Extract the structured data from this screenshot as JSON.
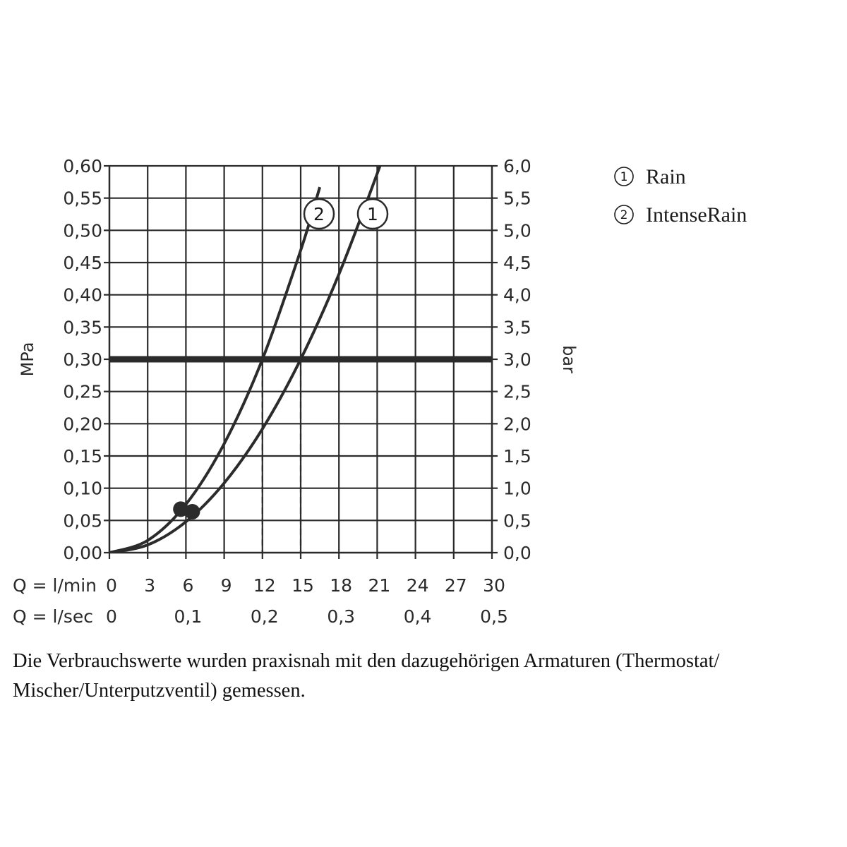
{
  "chart_data": {
    "type": "line",
    "xlabel_primary": "Q = l/min",
    "xlabel_secondary": "Q = l/sec",
    "ylabel_left": "MPa",
    "ylabel_right": "bar",
    "xlim": [
      0,
      30
    ],
    "ylim": [
      0,
      0.6
    ],
    "grid": true,
    "x_ticks": [
      "0",
      "3",
      "6",
      "9",
      "12",
      "15",
      "18",
      "21",
      "24",
      "27",
      "30"
    ],
    "x2_ticks": [
      {
        "value": 0,
        "label": "0"
      },
      {
        "value": 6,
        "label": "0,1"
      },
      {
        "value": 12,
        "label": "0,2"
      },
      {
        "value": 18,
        "label": "0,3"
      },
      {
        "value": 24,
        "label": "0,4"
      },
      {
        "value": 30,
        "label": "0,5"
      }
    ],
    "y_left_ticks": [
      "0,00",
      "0,05",
      "0,10",
      "0,15",
      "0,20",
      "0,25",
      "0,30",
      "0,35",
      "0,40",
      "0,45",
      "0,50",
      "0,55",
      "0,60"
    ],
    "y_right_ticks": [
      "0,0",
      "0,5",
      "1,0",
      "1,5",
      "2,0",
      "2,5",
      "3,0",
      "3,5",
      "4,0",
      "4,5",
      "5,0",
      "5,5",
      "6,0"
    ],
    "reference_line": {
      "y": 0.3
    },
    "series": [
      {
        "name": "Rain",
        "number": "1",
        "x": [
          0,
          3,
          6,
          9,
          12,
          15,
          18,
          21,
          22
        ],
        "y": [
          0,
          0.012,
          0.048,
          0.108,
          0.192,
          0.3,
          0.432,
          0.588,
          0.645
        ],
        "marker_x": 6.5
      },
      {
        "name": "IntenseRain",
        "number": "2",
        "x": [
          0,
          3,
          6,
          9,
          12,
          15,
          16.5
        ],
        "y": [
          0,
          0.019,
          0.075,
          0.169,
          0.3,
          0.469,
          0.567
        ],
        "marker_x": 5.6
      }
    ],
    "dashed_drops": [
      {
        "series": "IntenseRain",
        "x": 12,
        "y": 0.3
      },
      {
        "series": "Rain",
        "x": 15,
        "y": 0.3
      }
    ],
    "legend": [
      {
        "number": "1",
        "label": "Rain"
      },
      {
        "number": "2",
        "label": "IntenseRain"
      }
    ],
    "legend_position": "top-right"
  },
  "footnote": "Die Verbrauchswerte wurden praxisnah mit den dazugehörigen Armaturen (Thermostat/ Mischer/Unterputzventil) gemessen."
}
